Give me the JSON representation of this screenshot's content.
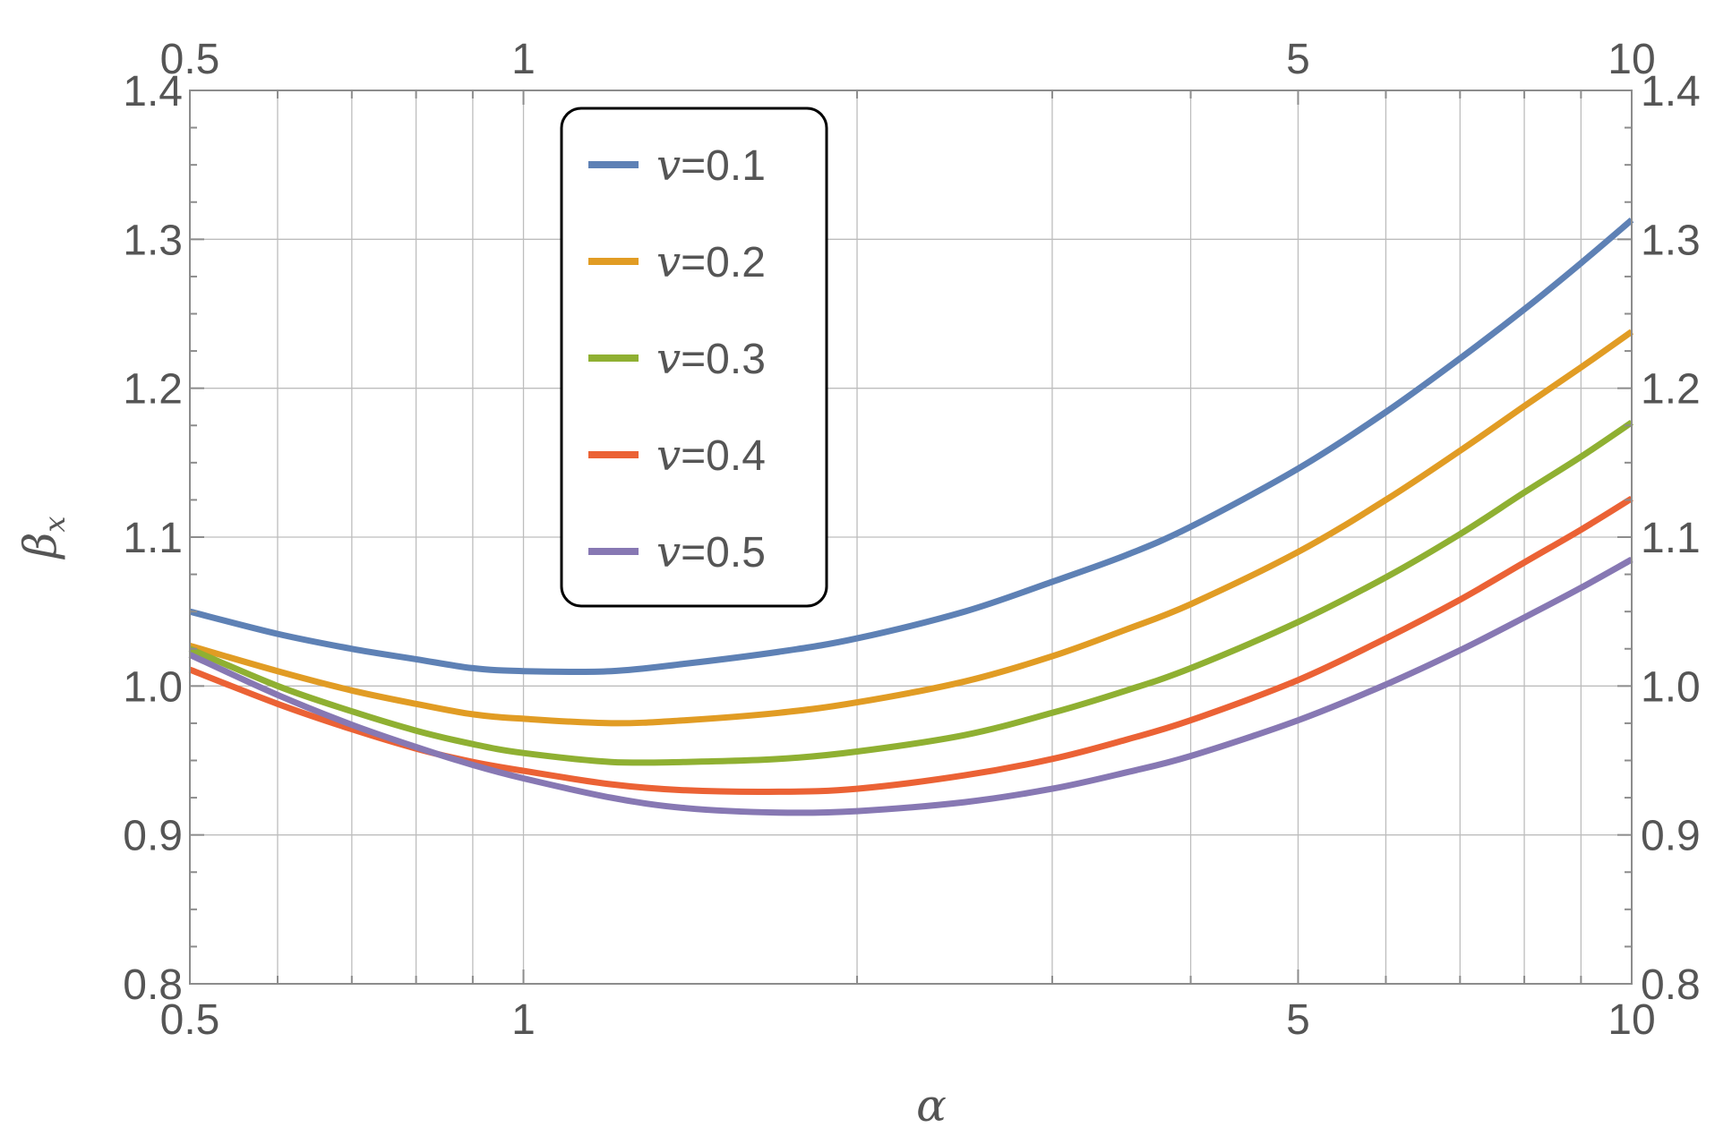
{
  "chart_data": {
    "type": "line",
    "xscale": "log",
    "xlim": [
      0.5,
      10
    ],
    "ylim": [
      0.8,
      1.4
    ],
    "xlabel": "α",
    "ylabel_base": "β",
    "ylabel_sub": "x",
    "xticks": [
      0.5,
      1,
      5,
      10
    ],
    "xtick_labels": [
      "0.5",
      "1",
      "5",
      "10"
    ],
    "yticks": [
      0.8,
      0.9,
      1.0,
      1.1,
      1.2,
      1.3,
      1.4
    ],
    "ytick_labels": [
      "0.8",
      "0.9",
      "1.0",
      "1.1",
      "1.2",
      "1.3",
      "1.4"
    ],
    "grid": true,
    "legend_position": "top-left",
    "series": [
      {
        "legend_var": "v",
        "legend_value": "=0.1",
        "color": "#5e81b5",
        "x": [
          0.5,
          0.6,
          0.7,
          0.8,
          0.9,
          1.0,
          1.2,
          1.4,
          1.7,
          2.0,
          2.5,
          3.0,
          3.5,
          4.0,
          5.0,
          6.0,
          7.0,
          8.0,
          9.0,
          10.0
        ],
        "y": [
          1.05,
          1.035,
          1.025,
          1.018,
          1.012,
          1.01,
          1.01,
          1.015,
          1.023,
          1.032,
          1.05,
          1.07,
          1.088,
          1.107,
          1.146,
          1.184,
          1.22,
          1.253,
          1.284,
          1.313
        ]
      },
      {
        "legend_var": "v",
        "legend_value": "=0.2",
        "color": "#e19c24",
        "x": [
          0.5,
          0.6,
          0.7,
          0.8,
          0.9,
          1.0,
          1.2,
          1.4,
          1.7,
          2.0,
          2.5,
          3.0,
          3.5,
          4.0,
          5.0,
          6.0,
          7.0,
          8.0,
          9.0,
          10.0
        ],
        "y": [
          1.027,
          1.01,
          0.997,
          0.988,
          0.981,
          0.978,
          0.975,
          0.977,
          0.982,
          0.989,
          1.003,
          1.02,
          1.038,
          1.055,
          1.09,
          1.125,
          1.158,
          1.188,
          1.214,
          1.238
        ]
      },
      {
        "legend_var": "v",
        "legend_value": "=0.3",
        "color": "#8fb032",
        "x": [
          0.5,
          0.6,
          0.7,
          0.8,
          0.9,
          1.0,
          1.2,
          1.4,
          1.7,
          2.0,
          2.5,
          3.0,
          3.5,
          4.0,
          5.0,
          6.0,
          7.0,
          8.0,
          9.0,
          10.0
        ],
        "y": [
          1.025,
          1.0,
          0.983,
          0.97,
          0.961,
          0.955,
          0.949,
          0.949,
          0.951,
          0.956,
          0.967,
          0.982,
          0.997,
          1.012,
          1.043,
          1.073,
          1.102,
          1.13,
          1.154,
          1.177
        ]
      },
      {
        "legend_var": "v",
        "legend_value": "=0.4",
        "color": "#eb6235",
        "x": [
          0.5,
          0.6,
          0.7,
          0.8,
          0.9,
          1.0,
          1.2,
          1.4,
          1.7,
          2.0,
          2.5,
          3.0,
          3.5,
          4.0,
          5.0,
          6.0,
          7.0,
          8.0,
          9.0,
          10.0
        ],
        "y": [
          1.011,
          0.988,
          0.971,
          0.958,
          0.949,
          0.943,
          0.934,
          0.93,
          0.929,
          0.931,
          0.94,
          0.951,
          0.964,
          0.977,
          1.004,
          1.032,
          1.058,
          1.083,
          1.105,
          1.126
        ]
      },
      {
        "legend_var": "v",
        "legend_value": "=0.5",
        "color": "#8778b3",
        "x": [
          0.5,
          0.6,
          0.7,
          0.8,
          0.9,
          1.0,
          1.2,
          1.4,
          1.7,
          2.0,
          2.5,
          3.0,
          3.5,
          4.0,
          5.0,
          6.0,
          7.0,
          8.0,
          9.0,
          10.0
        ],
        "y": [
          1.021,
          0.994,
          0.974,
          0.959,
          0.947,
          0.938,
          0.925,
          0.918,
          0.915,
          0.916,
          0.922,
          0.931,
          0.942,
          0.953,
          0.977,
          1.001,
          1.024,
          1.046,
          1.066,
          1.085
        ]
      }
    ]
  }
}
